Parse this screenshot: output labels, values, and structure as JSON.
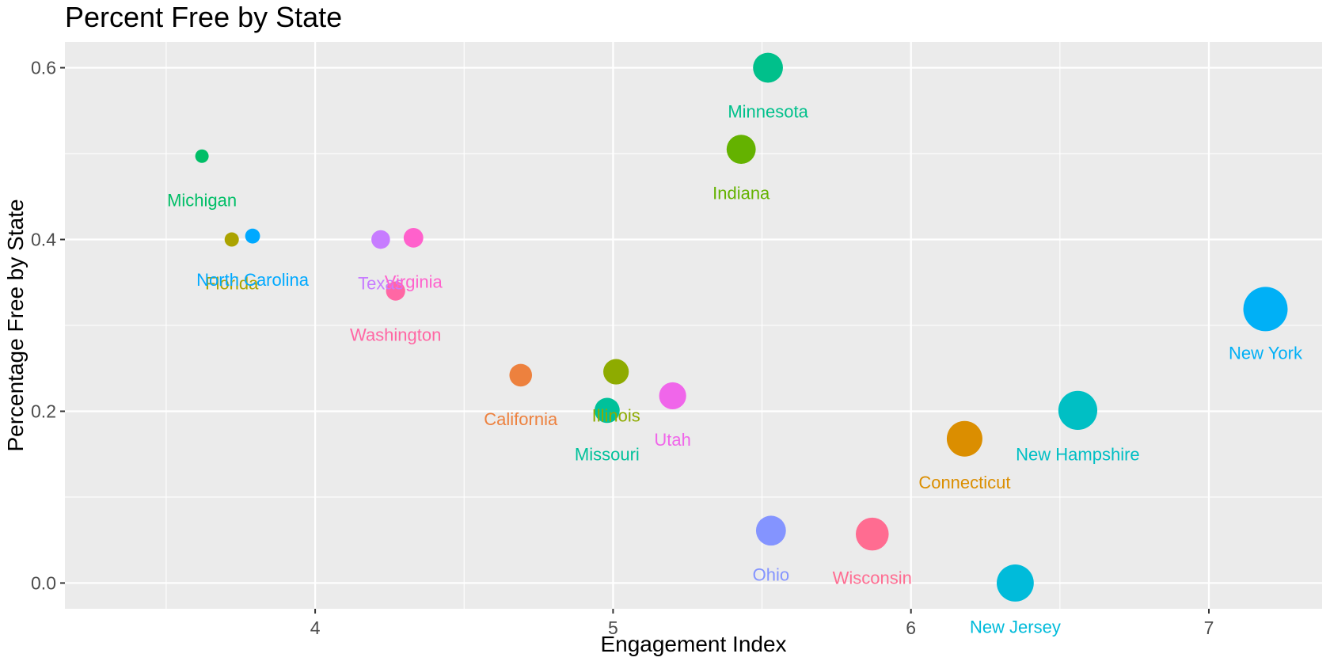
{
  "chart_data": {
    "type": "scatter",
    "title": "Percent Free by State",
    "xlabel": "Engagement Index",
    "ylabel": "Percentage Free by State",
    "xlim": [
      3.16,
      7.38
    ],
    "ylim": [
      -0.03,
      0.63
    ],
    "x_ticks": [
      4,
      5,
      6,
      7
    ],
    "x_tick_labels": [
      "4",
      "5",
      "6",
      "7"
    ],
    "y_ticks": [
      0.0,
      0.2,
      0.4,
      0.6
    ],
    "y_tick_labels": [
      "0.0",
      "0.2",
      "0.4",
      "0.6"
    ],
    "grid": true,
    "legend": "none",
    "point_size_encodes": "x",
    "points": [
      {
        "label": "Michigan",
        "x": 3.62,
        "y": 0.497,
        "color": "#00BE67"
      },
      {
        "label": "Florida",
        "x": 3.72,
        "y": 0.4,
        "color": "#ABA300"
      },
      {
        "label": "North Carolina",
        "x": 3.79,
        "y": 0.404,
        "color": "#00A9FF"
      },
      {
        "label": "Texas",
        "x": 4.22,
        "y": 0.4,
        "color": "#C77CFF"
      },
      {
        "label": "Virginia",
        "x": 4.33,
        "y": 0.402,
        "color": "#FF61CC"
      },
      {
        "label": "Washington",
        "x": 4.27,
        "y": 0.34,
        "color": "#FF67A4"
      },
      {
        "label": "California",
        "x": 4.69,
        "y": 0.242,
        "color": "#ED813E"
      },
      {
        "label": "Illinois",
        "x": 5.01,
        "y": 0.246,
        "color": "#8EAB00"
      },
      {
        "label": "Missouri",
        "x": 4.98,
        "y": 0.201,
        "color": "#00C19A"
      },
      {
        "label": "Utah",
        "x": 5.2,
        "y": 0.218,
        "color": "#F066EA"
      },
      {
        "label": "Indiana",
        "x": 5.43,
        "y": 0.505,
        "color": "#64B200"
      },
      {
        "label": "Minnesota",
        "x": 5.52,
        "y": 0.6,
        "color": "#00C08B"
      },
      {
        "label": "Ohio",
        "x": 5.53,
        "y": 0.061,
        "color": "#8494FF"
      },
      {
        "label": "Wisconsin",
        "x": 5.87,
        "y": 0.057,
        "color": "#FF6C91"
      },
      {
        "label": "Connecticut",
        "x": 6.18,
        "y": 0.168,
        "color": "#DB8E00"
      },
      {
        "label": "New Jersey",
        "x": 6.35,
        "y": 0.0,
        "color": "#00BBDA"
      },
      {
        "label": "New Hampshire",
        "x": 6.56,
        "y": 0.201,
        "color": "#00BFC4"
      },
      {
        "label": "New York",
        "x": 7.19,
        "y": 0.319,
        "color": "#00B0F6"
      }
    ]
  }
}
